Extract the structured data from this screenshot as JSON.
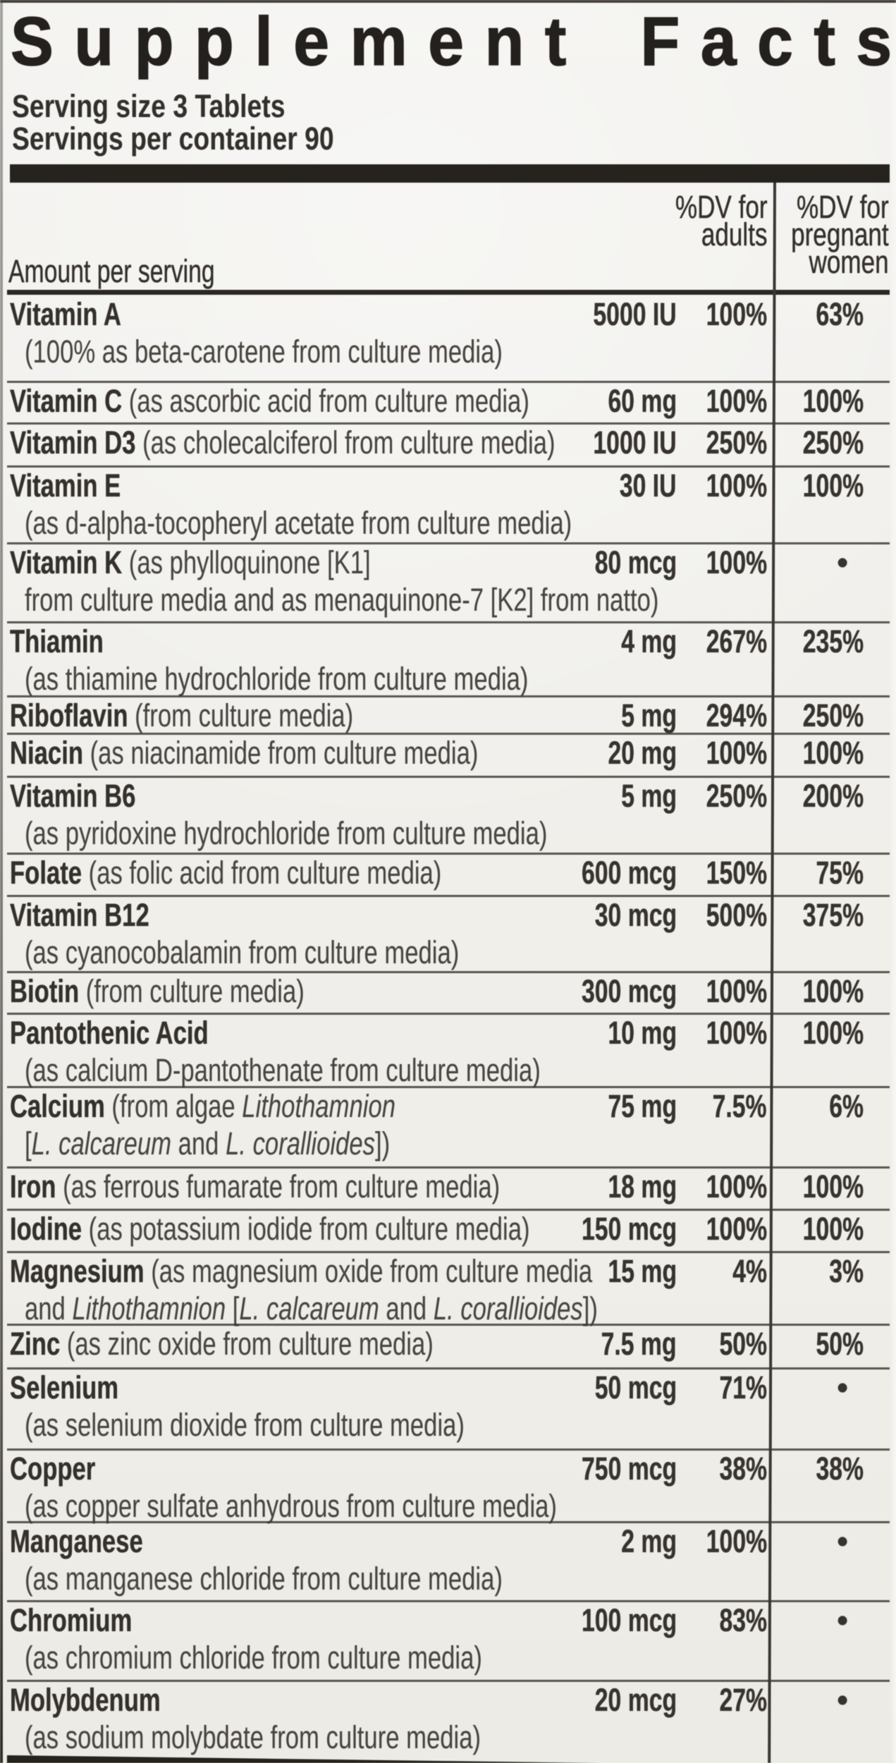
{
  "label": {
    "title": "Supplement Facts",
    "serving_size": "Serving size 3 Tablets",
    "servings_per_container": "Servings per container 90",
    "columns": {
      "amount_header": "Amount per serving",
      "adults_header_lines": [
        "%DV for",
        "adults"
      ],
      "pregnant_header_lines": [
        "%DV for",
        "pregnant",
        "women"
      ]
    },
    "bullet_symbol": "•",
    "colors": {
      "ink": "#312d29",
      "muted_ink": "#45413d",
      "background": "#f2f1ed",
      "rule": "#3e3a36",
      "bar": "#27231f"
    },
    "rows": [
      {
        "lines": [
          [
            {
              "t": "Vitamin A",
              "s": "b"
            }
          ],
          [
            {
              "t": "(100% as beta-carotene from culture media)",
              "s": "r"
            }
          ]
        ],
        "amount": "5000 IU",
        "dv_adults": "100%",
        "dv_pregnant": "63%"
      },
      {
        "lines": [
          [
            {
              "t": "Vitamin C",
              "s": "b"
            },
            {
              "t": " (as ascorbic acid from culture media)",
              "s": "r"
            }
          ]
        ],
        "amount": "60 mg",
        "dv_adults": "100%",
        "dv_pregnant": "100%"
      },
      {
        "lines": [
          [
            {
              "t": "Vitamin D3",
              "s": "b"
            },
            {
              "t": " (as cholecalciferol from culture media)",
              "s": "r"
            }
          ]
        ],
        "amount": "1000 IU",
        "dv_adults": "250%",
        "dv_pregnant": "250%"
      },
      {
        "lines": [
          [
            {
              "t": "Vitamin E",
              "s": "b"
            }
          ],
          [
            {
              "t": "(as d-alpha-tocopheryl acetate from culture media)",
              "s": "r"
            }
          ]
        ],
        "amount": "30 IU",
        "dv_adults": "100%",
        "dv_pregnant": "100%"
      },
      {
        "lines": [
          [
            {
              "t": "Vitamin K",
              "s": "b"
            },
            {
              "t": " (as phylloquinone [K1]",
              "s": "r"
            }
          ],
          [
            {
              "t": "from culture media and as menaquinone-7 [K2] from natto)",
              "s": "r"
            }
          ]
        ],
        "amount": "80 mcg",
        "dv_adults": "100%",
        "dv_pregnant": "•"
      },
      {
        "lines": [
          [
            {
              "t": "Thiamin",
              "s": "b"
            }
          ],
          [
            {
              "t": "(as thiamine hydrochloride from culture media)",
              "s": "r"
            }
          ]
        ],
        "amount": "4 mg",
        "dv_adults": "267%",
        "dv_pregnant": "235%"
      },
      {
        "lines": [
          [
            {
              "t": "Riboflavin",
              "s": "b"
            },
            {
              "t": " (from culture media)",
              "s": "r"
            }
          ]
        ],
        "amount": "5 mg",
        "dv_adults": "294%",
        "dv_pregnant": "250%"
      },
      {
        "lines": [
          [
            {
              "t": "Niacin",
              "s": "b"
            },
            {
              "t": " (as niacinamide from culture media)",
              "s": "r"
            }
          ]
        ],
        "amount": "20 mg",
        "dv_adults": "100%",
        "dv_pregnant": "100%"
      },
      {
        "lines": [
          [
            {
              "t": "Vitamin B6",
              "s": "b"
            }
          ],
          [
            {
              "t": "(as pyridoxine hydrochloride from culture media)",
              "s": "r"
            }
          ]
        ],
        "amount": "5 mg",
        "dv_adults": "250%",
        "dv_pregnant": "200%"
      },
      {
        "lines": [
          [
            {
              "t": "Folate",
              "s": "b"
            },
            {
              "t": " (as folic acid from culture media)",
              "s": "r"
            }
          ]
        ],
        "amount": "600 mcg",
        "dv_adults": "150%",
        "dv_pregnant": "75%"
      },
      {
        "lines": [
          [
            {
              "t": "Vitamin B12",
              "s": "b"
            }
          ],
          [
            {
              "t": "(as cyanocobalamin from culture media)",
              "s": "r"
            }
          ]
        ],
        "amount": "30 mcg",
        "dv_adults": "500%",
        "dv_pregnant": "375%"
      },
      {
        "lines": [
          [
            {
              "t": "Biotin",
              "s": "b"
            },
            {
              "t": " (from culture media)",
              "s": "r"
            }
          ]
        ],
        "amount": "300 mcg",
        "dv_adults": "100%",
        "dv_pregnant": "100%"
      },
      {
        "lines": [
          [
            {
              "t": "Pantothenic Acid",
              "s": "b"
            }
          ],
          [
            {
              "t": "(as calcium D-pantothenate from culture media)",
              "s": "r"
            }
          ]
        ],
        "amount": "10 mg",
        "dv_adults": "100%",
        "dv_pregnant": "100%"
      },
      {
        "lines": [
          [
            {
              "t": "Calcium",
              "s": "b"
            },
            {
              "t": " (from algae ",
              "s": "r"
            },
            {
              "t": "Lithothamnion",
              "s": "i"
            }
          ],
          [
            {
              "t": "[",
              "s": "r"
            },
            {
              "t": "L. calcareum",
              "s": "i"
            },
            {
              "t": " and ",
              "s": "r"
            },
            {
              "t": "L. corallioides",
              "s": "i"
            },
            {
              "t": "])",
              "s": "r"
            }
          ]
        ],
        "amount": "75 mg",
        "dv_adults": "7.5%",
        "dv_pregnant": "6%"
      },
      {
        "lines": [
          [
            {
              "t": "Iron",
              "s": "b"
            },
            {
              "t": " (as ferrous fumarate from culture media)",
              "s": "r"
            }
          ]
        ],
        "amount": "18 mg",
        "dv_adults": "100%",
        "dv_pregnant": "100%"
      },
      {
        "lines": [
          [
            {
              "t": "Iodine",
              "s": "b"
            },
            {
              "t": " (as potassium iodide from culture media)",
              "s": "r"
            }
          ]
        ],
        "amount": "150 mcg",
        "dv_adults": "100%",
        "dv_pregnant": "100%"
      },
      {
        "lines": [
          [
            {
              "t": "Magnesium",
              "s": "b"
            },
            {
              "t": " (as magnesium oxide from culture media",
              "s": "r"
            }
          ],
          [
            {
              "t": "and ",
              "s": "r"
            },
            {
              "t": "Lithothamnion",
              "s": "i"
            },
            {
              "t": " [",
              "s": "r"
            },
            {
              "t": "L. calcareum",
              "s": "i"
            },
            {
              "t": " and ",
              "s": "r"
            },
            {
              "t": "L. corallioides",
              "s": "i"
            },
            {
              "t": "])",
              "s": "r"
            }
          ]
        ],
        "amount": "15 mg",
        "dv_adults": "4%",
        "dv_pregnant": "3%"
      },
      {
        "lines": [
          [
            {
              "t": "Zinc",
              "s": "b"
            },
            {
              "t": " (as zinc oxide from culture media)",
              "s": "r"
            }
          ]
        ],
        "amount": "7.5 mg",
        "dv_adults": "50%",
        "dv_pregnant": "50%"
      },
      {
        "lines": [
          [
            {
              "t": "Selenium",
              "s": "b"
            }
          ],
          [
            {
              "t": "(as selenium dioxide from culture media)",
              "s": "r"
            }
          ]
        ],
        "amount": "50 mcg",
        "dv_adults": "71%",
        "dv_pregnant": "•"
      },
      {
        "lines": [
          [
            {
              "t": "Copper",
              "s": "b"
            }
          ],
          [
            {
              "t": "(as copper sulfate anhydrous from culture media)",
              "s": "r"
            }
          ]
        ],
        "amount": "750 mcg",
        "dv_adults": "38%",
        "dv_pregnant": "38%"
      },
      {
        "lines": [
          [
            {
              "t": "Manganese",
              "s": "b"
            }
          ],
          [
            {
              "t": "(as manganese chloride from culture media)",
              "s": "r"
            }
          ]
        ],
        "amount": "2 mg",
        "dv_adults": "100%",
        "dv_pregnant": "•"
      },
      {
        "lines": [
          [
            {
              "t": "Chromium",
              "s": "b"
            }
          ],
          [
            {
              "t": "(as chromium chloride from culture media)",
              "s": "r"
            }
          ]
        ],
        "amount": "100 mcg",
        "dv_adults": "83%",
        "dv_pregnant": "•"
      },
      {
        "lines": [
          [
            {
              "t": "Molybdenum",
              "s": "b"
            }
          ],
          [
            {
              "t": "(as sodium molybdate from culture media)",
              "s": "r"
            }
          ]
        ],
        "amount": "20 mcg",
        "dv_adults": "27%",
        "dv_pregnant": "•"
      }
    ]
  }
}
